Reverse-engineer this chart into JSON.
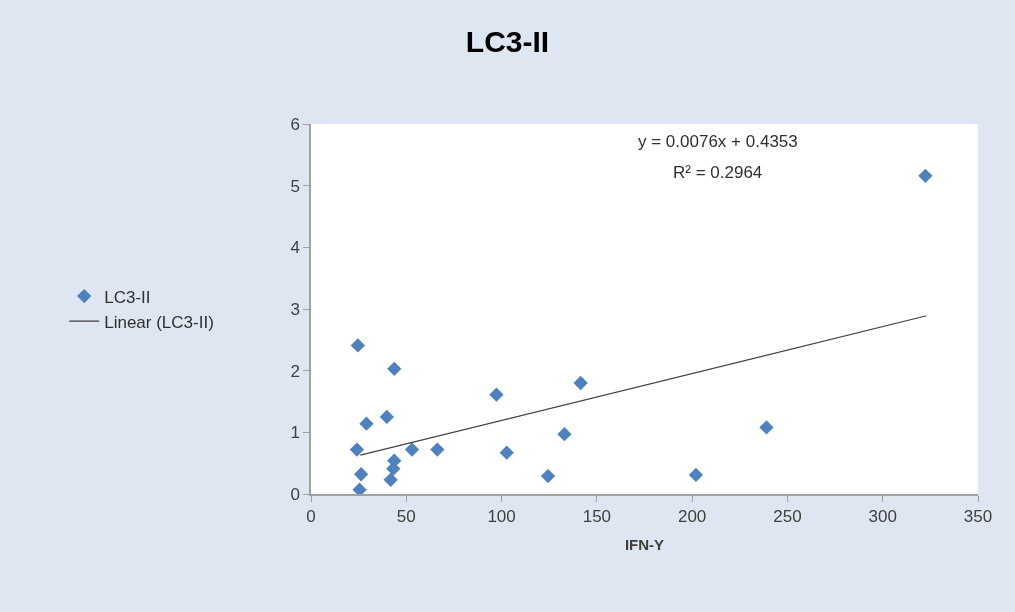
{
  "chart_data": {
    "type": "scatter",
    "title": "LC3-II",
    "xlabel": "IFN-Y",
    "xlim": [
      0,
      350
    ],
    "xticks": [
      0,
      50,
      100,
      150,
      200,
      250,
      300,
      350
    ],
    "ylim": [
      0,
      6
    ],
    "yticks": [
      0,
      1,
      2,
      3,
      4,
      5,
      6
    ],
    "legend": "left",
    "marker": "diamond",
    "annotations": [
      "y = 0.0076x + 0.4353",
      "R² = 0.2964"
    ],
    "series": [
      {
        "name": "LC3-II",
        "color": "#4f81bd",
        "x": [
          24.6,
          43.7,
          39.8,
          29.1,
          24.1,
          53,
          66.3,
          43.7,
          43.2,
          26.3,
          41.8,
          25.5,
          97.3,
          141.5,
          102.7,
          133,
          124.4,
          202,
          239,
          322.4
        ],
        "values": [
          2.41,
          2.03,
          1.25,
          1.14,
          0.72,
          0.72,
          0.72,
          0.54,
          0.41,
          0.32,
          0.23,
          0.07,
          1.61,
          1.8,
          0.67,
          0.97,
          0.29,
          0.31,
          1.08,
          5.16
        ]
      },
      {
        "name": "Linear (LC3-II)",
        "type": "line",
        "color": "#404040",
        "marker": "none",
        "line_style": "solid",
        "x": [
          25.9,
          323
        ],
        "values": [
          0.63,
          2.89
        ]
      }
    ]
  }
}
